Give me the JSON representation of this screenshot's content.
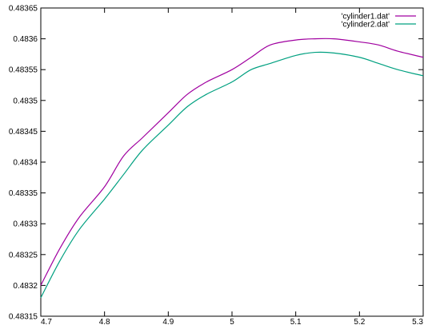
{
  "chart_data": {
    "type": "line",
    "title": "",
    "xlabel": "",
    "ylabel": "",
    "xlim": [
      4.7,
      5.3
    ],
    "ylim": [
      0.48315,
      0.48365
    ],
    "grid": false,
    "legend_position": "top-right",
    "xticks": [
      4.7,
      4.8,
      4.9,
      5,
      5.1,
      5.2,
      5.3
    ],
    "xtick_labels": [
      "4.7",
      "4.8",
      "4.9",
      "5",
      "5.1",
      "5.2",
      "5.3"
    ],
    "yticks": [
      0.48315,
      0.4832,
      0.48325,
      0.4833,
      0.48335,
      0.4834,
      0.48345,
      0.4835,
      0.48355,
      0.4836,
      0.48365
    ],
    "ytick_labels": [
      "0.48315",
      "0.4832",
      "0.48325",
      "0.4833",
      "0.48335",
      "0.4834",
      "0.48345",
      "0.4835",
      "0.48355",
      "0.4836",
      "0.48365"
    ],
    "series": [
      {
        "name": "'cylinder1.dat'",
        "color": "#a000a0",
        "x": [
          4.7,
          4.73,
          4.76,
          4.8,
          4.83,
          4.86,
          4.9,
          4.93,
          4.96,
          5.0,
          5.03,
          5.06,
          5.1,
          5.13,
          5.16,
          5.2,
          5.23,
          5.26,
          5.3
        ],
        "y": [
          0.4832,
          0.48326,
          0.48331,
          0.48336,
          0.48341,
          0.48344,
          0.48348,
          0.48351,
          0.48353,
          0.48355,
          0.48357,
          0.48359,
          0.483598,
          0.4836,
          0.4836,
          0.483595,
          0.48359,
          0.48358,
          0.48357
        ]
      },
      {
        "name": "'cylinder2.dat'",
        "color": "#00a080",
        "x": [
          4.7,
          4.73,
          4.76,
          4.8,
          4.83,
          4.86,
          4.9,
          4.93,
          4.96,
          5.0,
          5.03,
          5.06,
          5.1,
          5.13,
          5.16,
          5.2,
          5.23,
          5.26,
          5.3
        ],
        "y": [
          0.48318,
          0.48324,
          0.48329,
          0.48334,
          0.48338,
          0.48342,
          0.48346,
          0.48349,
          0.48351,
          0.48353,
          0.48355,
          0.48356,
          0.483573,
          0.483578,
          0.483577,
          0.48357,
          0.48356,
          0.48355,
          0.48354
        ]
      }
    ]
  }
}
